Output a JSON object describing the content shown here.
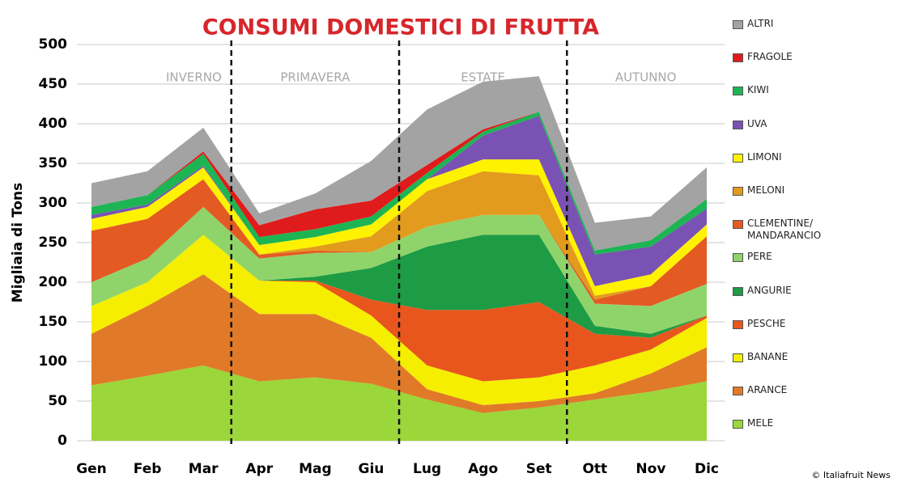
{
  "chart_data": {
    "type": "stacked-area",
    "title": "CONSUMI DOMESTICI DI FRUTTA",
    "y_label": "Migliaia di Tons",
    "categories": [
      "Gen",
      "Feb",
      "Mar",
      "Apr",
      "Mag",
      "Giu",
      "Lug",
      "Ago",
      "Set",
      "Ott",
      "Nov",
      "Dic"
    ],
    "ylim": [
      0,
      500
    ],
    "yticks": [
      0,
      50,
      100,
      150,
      200,
      250,
      300,
      350,
      400,
      450,
      500
    ],
    "grid": true,
    "annotations": [
      "INVERNO",
      "PRIMAVERA",
      "ESTATE",
      "AUTUNNO"
    ],
    "credit": "© Italiafruit News",
    "series": [
      {
        "name": "MELE",
        "color": "#9bd63a",
        "values": [
          70,
          82,
          95,
          75,
          80,
          72,
          52,
          35,
          42,
          52,
          62,
          75
        ]
      },
      {
        "name": "ARANCE",
        "color": "#e07a28",
        "values": [
          65,
          88,
          115,
          85,
          80,
          58,
          13,
          10,
          8,
          8,
          23,
          43
        ]
      },
      {
        "name": "BANANE",
        "color": "#f5ee00",
        "values": [
          35,
          30,
          50,
          42,
          40,
          28,
          30,
          30,
          30,
          35,
          30,
          37
        ]
      },
      {
        "name": "PESCHE",
        "color": "#e8561e",
        "values": [
          0,
          0,
          0,
          0,
          2,
          20,
          70,
          90,
          95,
          40,
          15,
          3
        ]
      },
      {
        "name": "ANGURIE",
        "color": "#1e9b45",
        "values": [
          0,
          0,
          0,
          0,
          5,
          40,
          80,
          95,
          85,
          10,
          5,
          0
        ]
      },
      {
        "name": "PERE",
        "color": "#8fd46a",
        "values": [
          30,
          30,
          35,
          28,
          30,
          20,
          25,
          25,
          25,
          28,
          35,
          40
        ]
      },
      {
        "name": "CLEMENTINE/ MANDARANCIO",
        "color": "#e45a23",
        "values": [
          65,
          50,
          35,
          5,
          3,
          0,
          0,
          0,
          0,
          5,
          25,
          60
        ]
      },
      {
        "name": "MELONI",
        "color": "#e39b1d",
        "values": [
          0,
          0,
          0,
          0,
          5,
          20,
          45,
          55,
          50,
          5,
          0,
          0
        ]
      },
      {
        "name": "LIMONI",
        "color": "#fff200",
        "values": [
          15,
          15,
          15,
          12,
          12,
          15,
          15,
          15,
          20,
          12,
          15,
          15
        ]
      },
      {
        "name": "UVA",
        "color": "#7a52b3",
        "values": [
          5,
          3,
          2,
          0,
          0,
          0,
          0,
          30,
          55,
          40,
          35,
          20
        ]
      },
      {
        "name": "KIWI",
        "color": "#1db553",
        "values": [
          10,
          12,
          15,
          10,
          10,
          10,
          8,
          5,
          5,
          5,
          8,
          12
        ]
      },
      {
        "name": "FRAGOLE",
        "color": "#e01b1b",
        "values": [
          0,
          0,
          3,
          15,
          25,
          20,
          10,
          3,
          0,
          0,
          0,
          0
        ]
      },
      {
        "name": "ALTRI",
        "color": "#a3a3a3",
        "values": [
          30,
          30,
          30,
          15,
          20,
          50,
          70,
          60,
          45,
          35,
          30,
          40
        ]
      }
    ]
  }
}
